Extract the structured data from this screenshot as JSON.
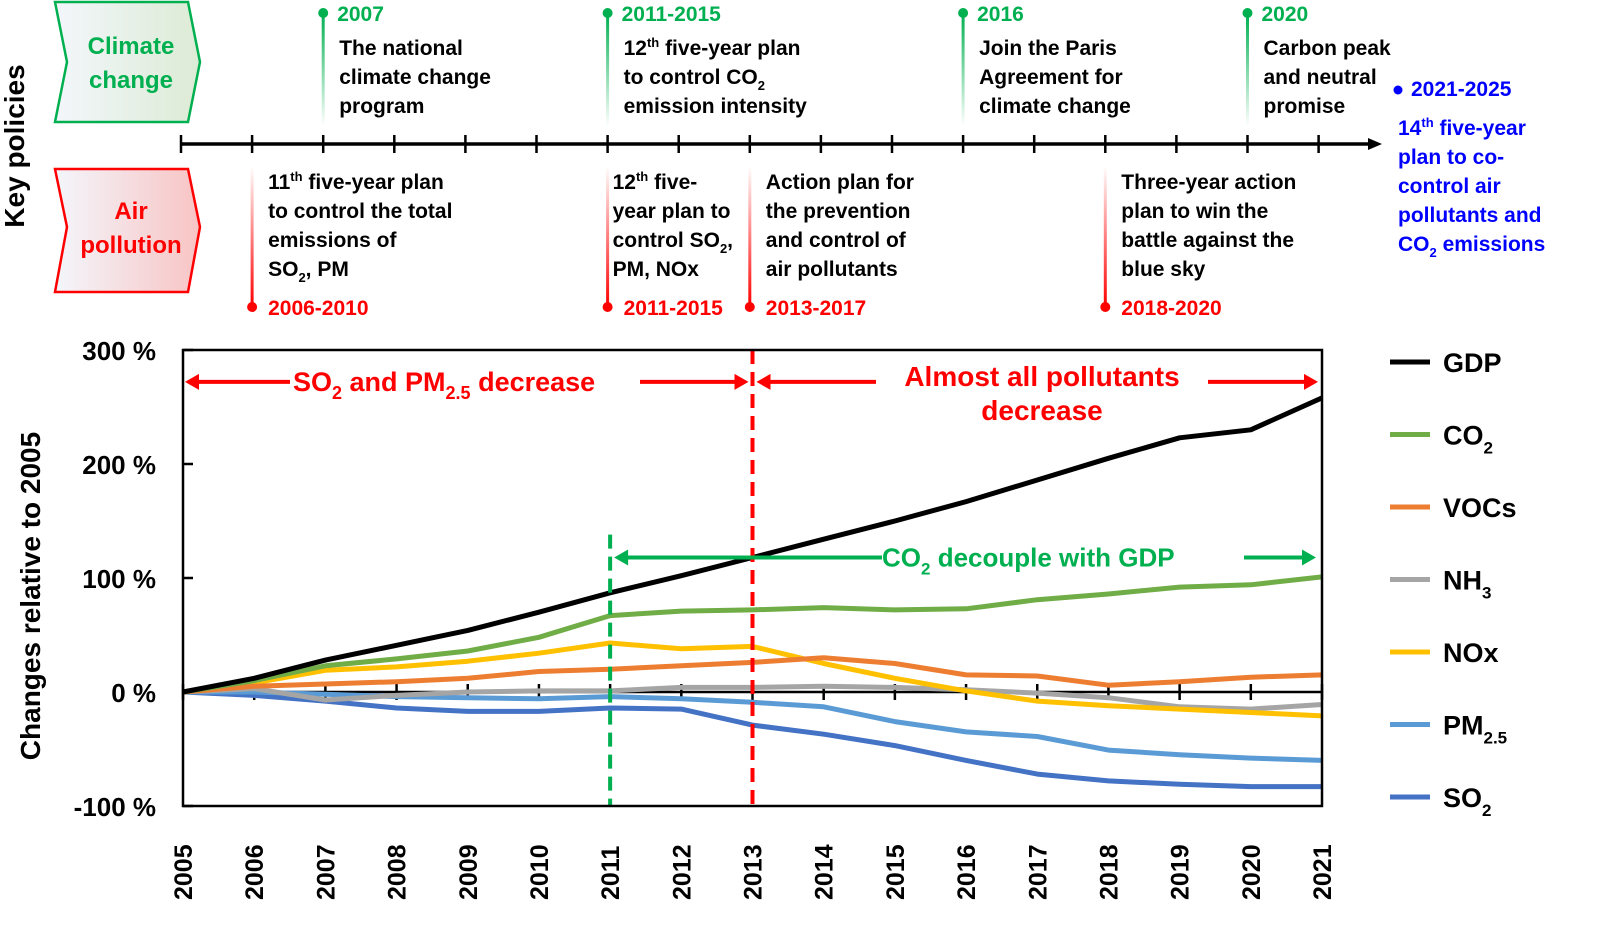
{
  "policies": {
    "side_label": "Key policies",
    "categories": [
      {
        "id": "climate",
        "lines": [
          "Climate",
          "change"
        ],
        "color": "#00b050"
      },
      {
        "id": "air",
        "lines": [
          "Air",
          "pollution"
        ],
        "color": "#ff0000"
      }
    ],
    "timeline_start": 2005,
    "timeline_end": 2021,
    "climate_events": [
      {
        "year": 2007,
        "label": "2007",
        "lines": [
          [
            "The national"
          ],
          [
            "climate change"
          ],
          [
            "program"
          ]
        ]
      },
      {
        "year": 2011,
        "label": "2011-2015",
        "lines": [
          [
            "12",
            "th",
            " five-year plan"
          ],
          [
            "to control CO",
            "2",
            ""
          ],
          [
            "emission intensity"
          ]
        ]
      },
      {
        "year": 2016,
        "label": "2016",
        "lines": [
          [
            "Join the Paris"
          ],
          [
            "Agreement for"
          ],
          [
            "climate change"
          ]
        ]
      },
      {
        "year": 2020,
        "label": "2020",
        "lines": [
          [
            "Carbon peak"
          ],
          [
            "and neutral"
          ],
          [
            "promise"
          ]
        ]
      }
    ],
    "air_events": [
      {
        "year": 2006,
        "label": "2006-2010",
        "lines": [
          [
            "11",
            "th",
            " five-year plan"
          ],
          [
            "to control the total"
          ],
          [
            "emissions of"
          ],
          [
            "SO",
            "2",
            ", PM"
          ]
        ]
      },
      {
        "year": 2011,
        "label": "2011-2015",
        "lines": [
          [
            "12",
            "th",
            " five-"
          ],
          [
            "year plan to"
          ],
          [
            "control SO",
            "2",
            ","
          ],
          [
            "PM, NOx"
          ]
        ]
      },
      {
        "year": 2013,
        "label": "2013-2017",
        "lines": [
          [
            "Action plan for"
          ],
          [
            "the prevention"
          ],
          [
            "and control of"
          ],
          [
            "air pollutants"
          ]
        ]
      },
      {
        "year": 2018,
        "label": "2018-2020",
        "lines": [
          [
            "Three-year action"
          ],
          [
            "plan to win the"
          ],
          [
            "battle against the"
          ],
          [
            "blue sky"
          ]
        ]
      }
    ],
    "future_event": {
      "label": "2021-2025",
      "color": "#0000ff",
      "lines": [
        [
          "14",
          "th",
          " five-year"
        ],
        [
          "plan to co-"
        ],
        [
          "control air"
        ],
        [
          "pollutants and"
        ],
        [
          "CO",
          "2",
          " emissions"
        ]
      ]
    }
  },
  "chart_data": {
    "type": "line",
    "title": "",
    "xlabel": "",
    "ylabel": "Changes relative to 2005",
    "x": [
      2005,
      2006,
      2007,
      2008,
      2009,
      2010,
      2011,
      2012,
      2013,
      2014,
      2015,
      2016,
      2017,
      2018,
      2019,
      2020,
      2021
    ],
    "ylim": [
      -100,
      300
    ],
    "yticks": [
      -100,
      0,
      100,
      200,
      300
    ],
    "ytick_labels": [
      "-100 %",
      "0 %",
      "100 %",
      "200 %",
      "300 %"
    ],
    "grid": false,
    "legend_position": "right",
    "series": [
      {
        "name": "GDP",
        "label": [
          "GDP",
          "",
          ""
        ],
        "color": "#000000",
        "values": [
          0,
          12,
          28,
          41,
          54,
          70,
          87,
          102,
          118,
          134,
          150,
          167,
          186,
          205,
          223,
          230,
          258
        ]
      },
      {
        "name": "CO2",
        "label": [
          "CO",
          "2",
          ""
        ],
        "color": "#70ad47",
        "values": [
          0,
          10,
          23,
          29,
          36,
          48,
          67,
          71,
          72,
          74,
          72,
          73,
          81,
          86,
          92,
          94,
          101
        ]
      },
      {
        "name": "VOCs",
        "label": [
          "VOCs",
          "",
          ""
        ],
        "color": "#ed7d31",
        "values": [
          0,
          5,
          7,
          9,
          12,
          18,
          20,
          23,
          26,
          30,
          25,
          15,
          14,
          6,
          9,
          13,
          15
        ]
      },
      {
        "name": "NH3",
        "label": [
          "NH",
          "3",
          ""
        ],
        "color": "#a5a5a5",
        "values": [
          0,
          3,
          -7,
          -3,
          0,
          1,
          1,
          4,
          4,
          5,
          4,
          2,
          -1,
          -5,
          -13,
          -15,
          -11
        ]
      },
      {
        "name": "NOx",
        "label": [
          "NOx",
          "",
          ""
        ],
        "color": "#ffc000",
        "values": [
          0,
          8,
          19,
          22,
          27,
          34,
          43,
          38,
          40,
          25,
          12,
          1,
          -8,
          -12,
          -15,
          -18,
          -21
        ]
      },
      {
        "name": "PM2.5",
        "label": [
          "PM",
          "2.5",
          ""
        ],
        "color": "#5b9bd5",
        "values": [
          0,
          0,
          -2,
          -4,
          -5,
          -6,
          -4,
          -6,
          -9,
          -13,
          -26,
          -35,
          -39,
          -51,
          -55,
          -58,
          -60
        ]
      },
      {
        "name": "SO2",
        "label": [
          "SO",
          "2",
          ""
        ],
        "color": "#4472c4",
        "values": [
          0,
          -3,
          -8,
          -14,
          -17,
          -17,
          -14,
          -15,
          -29,
          -37,
          -47,
          -60,
          -72,
          -78,
          -81,
          -83,
          -83
        ]
      }
    ],
    "annotations": [
      {
        "id": "so2-pm-decrease",
        "parts": [
          "SO",
          "2",
          " and PM",
          "2.5",
          " decrease"
        ],
        "color": "#ff0000",
        "x_from": 2005,
        "x_to": 2013,
        "y": 272
      },
      {
        "id": "almost-all-decrease",
        "lines": [
          "Almost all pollutants",
          "decrease"
        ],
        "color": "#ff0000",
        "x_from": 2013,
        "x_to": 2021,
        "y": 272
      },
      {
        "id": "co2-decouple",
        "parts": [
          "CO",
          "2",
          " decouple with GDP"
        ],
        "color": "#00b050",
        "x_from": 2011,
        "x_to": 2021,
        "y": 118
      }
    ],
    "vlines": [
      {
        "id": "green-2011",
        "x": 2011,
        "color": "#00b050",
        "y_top": 138
      },
      {
        "id": "red-2013",
        "x": 2013,
        "color": "#ff0000",
        "y_top": 300
      }
    ]
  }
}
